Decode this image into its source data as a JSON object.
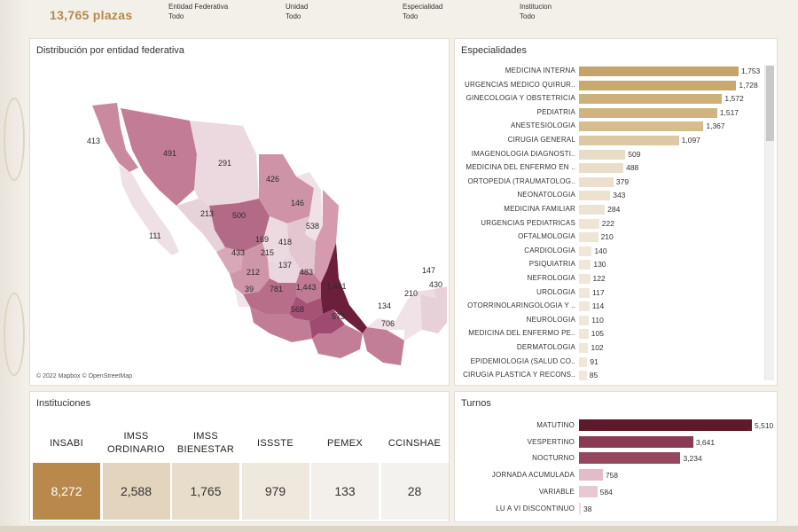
{
  "header": {
    "total": "13,765 plazas",
    "filters": [
      {
        "label": "Entidad Federativa",
        "value": "Todo"
      },
      {
        "label": "Unidad",
        "value": "Todo"
      },
      {
        "label": "Especialidad",
        "value": "Todo"
      },
      {
        "label": "Institucion",
        "value": "Todo"
      }
    ]
  },
  "map": {
    "title": "Distribución por entidad federativa",
    "attribution": "© 2022 Mapbox © OpenStreetMap",
    "labels": [
      {
        "value": "413"
      },
      {
        "value": "491"
      },
      {
        "value": "111"
      },
      {
        "value": "291"
      },
      {
        "value": "426"
      },
      {
        "value": "213"
      },
      {
        "value": "500"
      },
      {
        "value": "146"
      },
      {
        "value": "538"
      },
      {
        "value": "169"
      },
      {
        "value": "418"
      },
      {
        "value": "433"
      },
      {
        "value": "215"
      },
      {
        "value": "137"
      },
      {
        "value": "212"
      },
      {
        "value": "483"
      },
      {
        "value": "39"
      },
      {
        "value": "781"
      },
      {
        "value": "1,443"
      },
      {
        "value": "1,441"
      },
      {
        "value": "147"
      },
      {
        "value": "430"
      },
      {
        "value": "210"
      },
      {
        "value": "134"
      },
      {
        "value": "568"
      },
      {
        "value": "573"
      },
      {
        "value": "706"
      }
    ]
  },
  "especialidades": {
    "title": "Especialidades",
    "max": 1753,
    "items": [
      {
        "label": "MEDICINA INTERNA",
        "value": 1753,
        "display": "1,753",
        "color": "#c4a468"
      },
      {
        "label": "URGENCIAS MEDICO QUIRUR..",
        "value": 1728,
        "display": "1,728",
        "color": "#c7a86d"
      },
      {
        "label": "GINECOLOGIA Y OBSTETRICIA",
        "value": 1572,
        "display": "1,572",
        "color": "#cdb17b"
      },
      {
        "label": "PEDIATRIA",
        "value": 1517,
        "display": "1,517",
        "color": "#cfb47f"
      },
      {
        "label": "ANESTESIOLOGIA",
        "value": 1367,
        "display": "1,367",
        "color": "#d5bd8f"
      },
      {
        "label": "CIRUGIA GENERAL",
        "value": 1097,
        "display": "1,097",
        "color": "#dcc9a3"
      },
      {
        "label": "IMAGENOLOGIA DIAGNOSTI..",
        "value": 509,
        "display": "509",
        "color": "#e8dcc6"
      },
      {
        "label": "MEDICINA DEL ENFERMO EN ..",
        "value": 488,
        "display": "488",
        "color": "#e9ddc8"
      },
      {
        "label": "ORTOPEDIA (TRAUMATOLOG..",
        "value": 379,
        "display": "379",
        "color": "#ebe0cd"
      },
      {
        "label": "NEONATOLOGIA",
        "value": 343,
        "display": "343",
        "color": "#ece2cf"
      },
      {
        "label": "MEDICINA FAMILIAR",
        "value": 284,
        "display": "284",
        "color": "#ede3d2"
      },
      {
        "label": "URGENCIAS PEDIATRICAS",
        "value": 222,
        "display": "222",
        "color": "#eee5d5"
      },
      {
        "label": "OFTALMOLOGIA",
        "value": 210,
        "display": "210",
        "color": "#eee5d5"
      },
      {
        "label": "CARDIOLOGIA",
        "value": 140,
        "display": "140",
        "color": "#efe7d8"
      },
      {
        "label": "PSIQUIATRIA",
        "value": 130,
        "display": "130",
        "color": "#efe7d8"
      },
      {
        "label": "NEFROLOGIA",
        "value": 122,
        "display": "122",
        "color": "#efe7d8"
      },
      {
        "label": "UROLOGIA",
        "value": 117,
        "display": "117",
        "color": "#efe7d8"
      },
      {
        "label": "OTORRINOLARINGOLOGIA Y ..",
        "value": 114,
        "display": "114",
        "color": "#efe7d8"
      },
      {
        "label": "NEUROLOGIA",
        "value": 110,
        "display": "110",
        "color": "#efe7d8"
      },
      {
        "label": "MEDICINA DEL ENFERMO PE..",
        "value": 105,
        "display": "105",
        "color": "#efe7d8"
      },
      {
        "label": "DERMATOLOGIA",
        "value": 102,
        "display": "102",
        "color": "#efe7d8"
      },
      {
        "label": "EPIDEMIOLOGIA (SALUD CO..",
        "value": 91,
        "display": "91",
        "color": "#f0e8da"
      },
      {
        "label": "CIRUGIA PLASTICA Y RECONS..",
        "value": 85,
        "display": "85",
        "color": "#f0e8da"
      }
    ]
  },
  "instituciones": {
    "title": "Instituciones",
    "items": [
      {
        "name": "INSABI",
        "value": "8,272",
        "bg": "#b8894b",
        "fg": "#ffffff"
      },
      {
        "name": "IMSS ORDINARIO",
        "value": "2,588",
        "bg": "#e2d4bd",
        "fg": "#333333"
      },
      {
        "name": "IMSS BIENESTAR",
        "value": "1,765",
        "bg": "#e8ddca",
        "fg": "#333333"
      },
      {
        "name": "ISSSTE",
        "value": "979",
        "bg": "#efe8dc",
        "fg": "#333333"
      },
      {
        "name": "PEMEX",
        "value": "133",
        "bg": "#f3f0eb",
        "fg": "#333333"
      },
      {
        "name": "CCINSHAE",
        "value": "28",
        "bg": "#f4f2ee",
        "fg": "#333333"
      }
    ]
  },
  "turnos": {
    "title": "Turnos",
    "max": 5510,
    "items": [
      {
        "label": "MATUTINO",
        "value": 5510,
        "display": "5,510",
        "color": "#5c1a2c"
      },
      {
        "label": "VESPERTINO",
        "value": 3641,
        "display": "3,641",
        "color": "#8a3a55"
      },
      {
        "label": "NOCTURNO",
        "value": 3234,
        "display": "3,234",
        "color": "#96475f"
      },
      {
        "label": "JORNADA ACUMULADA",
        "value": 758,
        "display": "758",
        "color": "#e2bcc6"
      },
      {
        "label": "VARIABLE",
        "value": 584,
        "display": "584",
        "color": "#e8c9d1"
      },
      {
        "label": "LU A VI DISCONTINUO",
        "value": 38,
        "display": "38",
        "color": "#f0dce2"
      }
    ]
  }
}
